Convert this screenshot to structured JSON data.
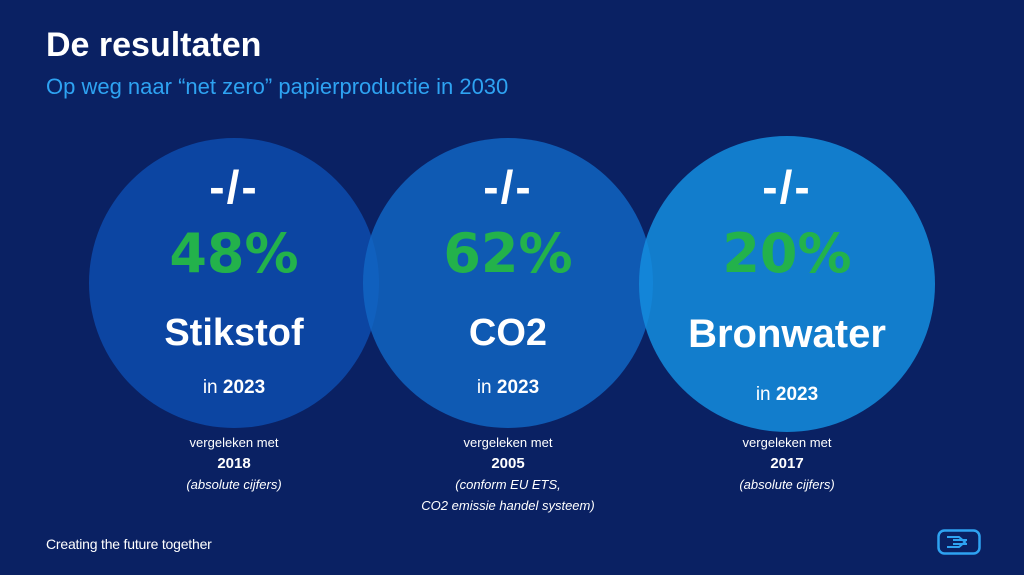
{
  "title": "De resultaten",
  "subtitle": "Op weg naar “net zero” papierproductie in 2030",
  "metrics": [
    {
      "separator": "-/-",
      "percent": "48%",
      "name": "Stikstof",
      "year_prefix": "in",
      "year": "2023",
      "compare_label": "vergeleken met",
      "compare_year": "2018",
      "note_lines": [
        "(absolute cijfers)"
      ]
    },
    {
      "separator": "-/-",
      "percent": "62%",
      "name": "CO2",
      "year_prefix": "in",
      "year": "2023",
      "compare_label": "vergeleken met",
      "compare_year": "2005",
      "note_lines": [
        "(conform EU ETS,",
        "CO2 emissie handel systeem)"
      ]
    },
    {
      "separator": "-/-",
      "percent": "20%",
      "name": "Bronwater",
      "year_prefix": "in",
      "year": "2023",
      "compare_label": "vergeleken met",
      "compare_year": "2017",
      "note_lines": [
        "(absolute cijfers)"
      ]
    }
  ],
  "footer": "Creating the future together",
  "colors": {
    "background": "#0a2163",
    "subtitle": "#2ea3f2",
    "percent": "#23b24b",
    "circle_1": "#0d48a5",
    "circle_2": "#1167c4",
    "circle_3": "#148dde"
  },
  "logo_icon": "company-logo-icon"
}
